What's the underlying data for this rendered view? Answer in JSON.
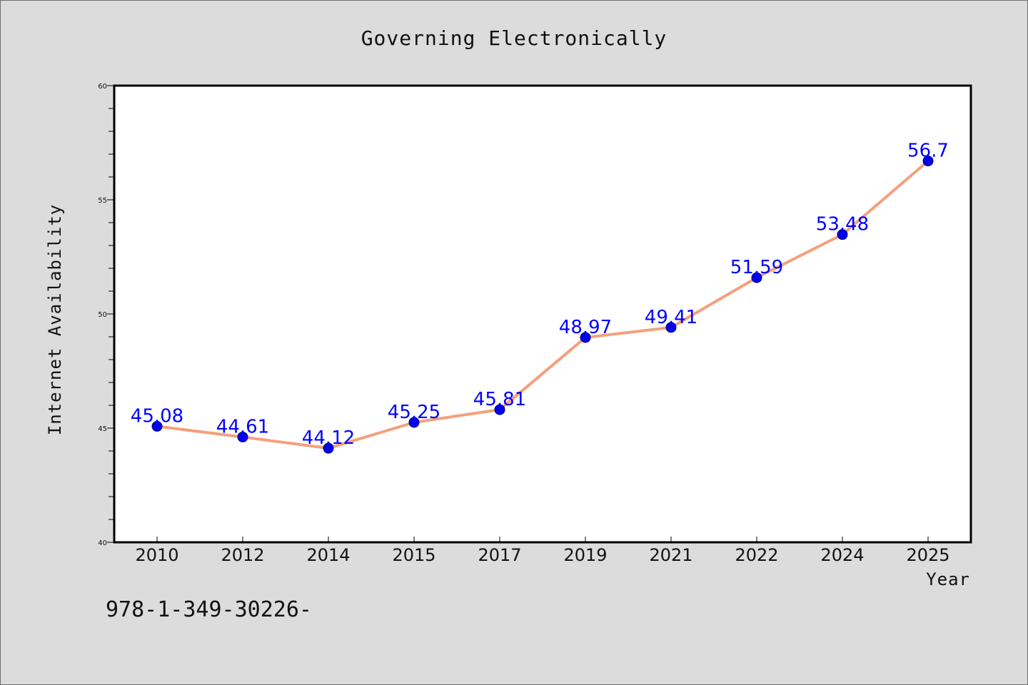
{
  "chart_data": {
    "type": "line",
    "title": "Governing Electronically",
    "xlabel": "Year",
    "ylabel": "Internet Availability",
    "categories": [
      "2010",
      "2012",
      "2014",
      "2015",
      "2017",
      "2019",
      "2021",
      "2022",
      "2024",
      "2025"
    ],
    "series": [
      {
        "values": [
          45.08,
          44.61,
          44.12,
          45.25,
          45.81,
          48.97,
          49.41,
          51.59,
          53.48,
          56.7
        ],
        "data_labels": [
          "45.08",
          "44.61",
          "44.12",
          "45.25",
          "45.81",
          "48.97",
          "49.41",
          "51.59",
          "53.48",
          "56.7"
        ],
        "line_color": "#f4a07c",
        "marker_color": "#0000ee"
      }
    ],
    "ylim": [
      40,
      60
    ],
    "yticks": [
      "40",
      "45",
      "50",
      "55",
      "60"
    ],
    "grid": false,
    "legend": "none",
    "footnote": "978-1-349-30226-"
  }
}
